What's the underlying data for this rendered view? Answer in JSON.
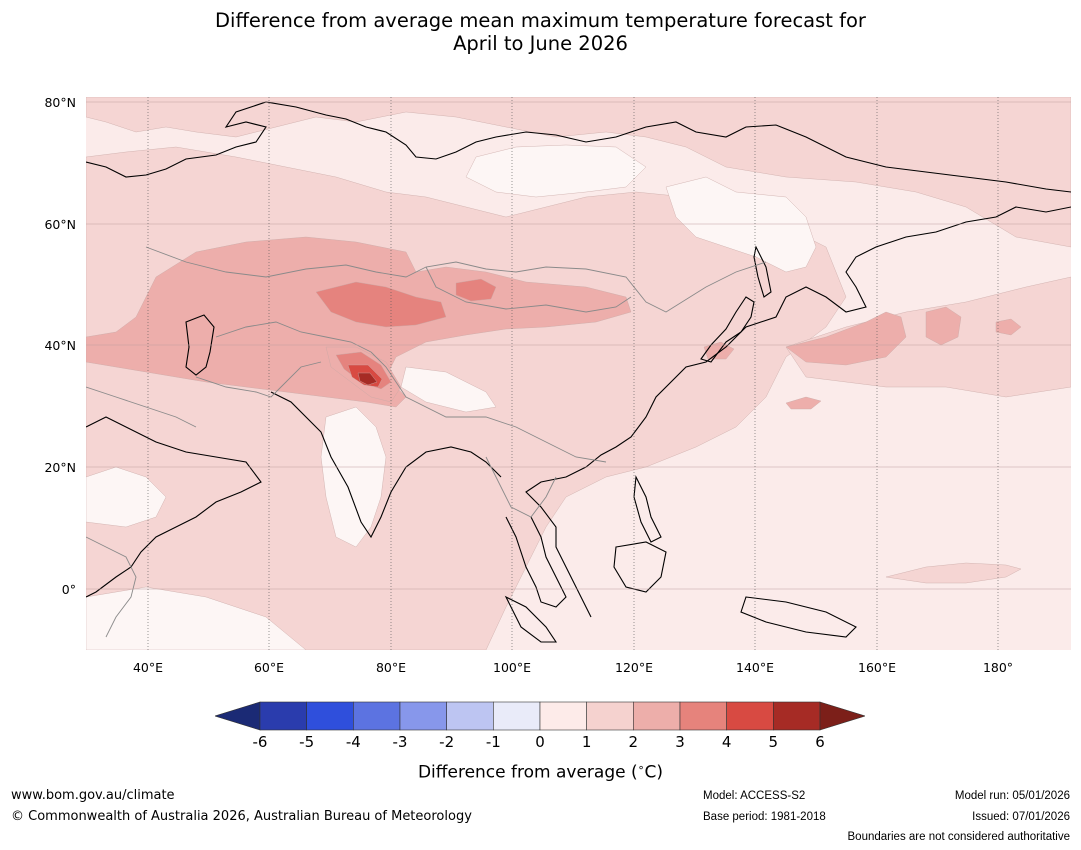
{
  "title": {
    "line1": "Difference from average mean maximum temperature forecast for",
    "line2": "April to June 2026"
  },
  "map": {
    "region": "Asia",
    "lat_labels": [
      "80°N",
      "60°N",
      "40°N",
      "20°N",
      "0°"
    ],
    "lon_labels": [
      "40°E",
      "60°E",
      "80°E",
      "100°E",
      "120°E",
      "140°E",
      "160°E",
      "180°"
    ],
    "colors": {
      "background": "#fbebea",
      "anomaly_1_2": "#f5d5d3",
      "anomaly_2_3": "#edaeab",
      "anomaly_3_4": "#e5837e",
      "anomaly_4_5": "#d84a42",
      "anomaly_5_6": "#a62b25",
      "anomaly_0_1_white": "#fdf6f5",
      "coast": "#000000",
      "borders": "#8c8c8c"
    }
  },
  "colorbar": {
    "tick_labels": [
      "-6",
      "-5",
      "-4",
      "-3",
      "-2",
      "-1",
      "0",
      "1",
      "2",
      "3",
      "4",
      "5",
      "6"
    ],
    "colors": [
      "#1b2a75",
      "#2a3cad",
      "#2f4fdc",
      "#5c73e1",
      "#8797eb",
      "#bdc5f2",
      "#e9ebf9",
      "#fdebe9",
      "#f5d2cf",
      "#edaeaa",
      "#e6837c",
      "#d84a42",
      "#a62b25",
      "#7c1f19"
    ],
    "label": "Difference from average (",
    "label_unit": "∘",
    "label_end": "C)"
  },
  "footer": {
    "website": "www.bom.gov.au/climate",
    "copyright": "© Commonwealth of Australia 2026, Australian Bureau of Meteorology",
    "model": "Model: ACCESS-S2",
    "base_period": "Base period: 1981-2018",
    "model_run": "Model run: 05/01/2026",
    "issued": "Issued: 07/01/2026",
    "disclaimer": "Boundaries are not considered authoritative"
  }
}
